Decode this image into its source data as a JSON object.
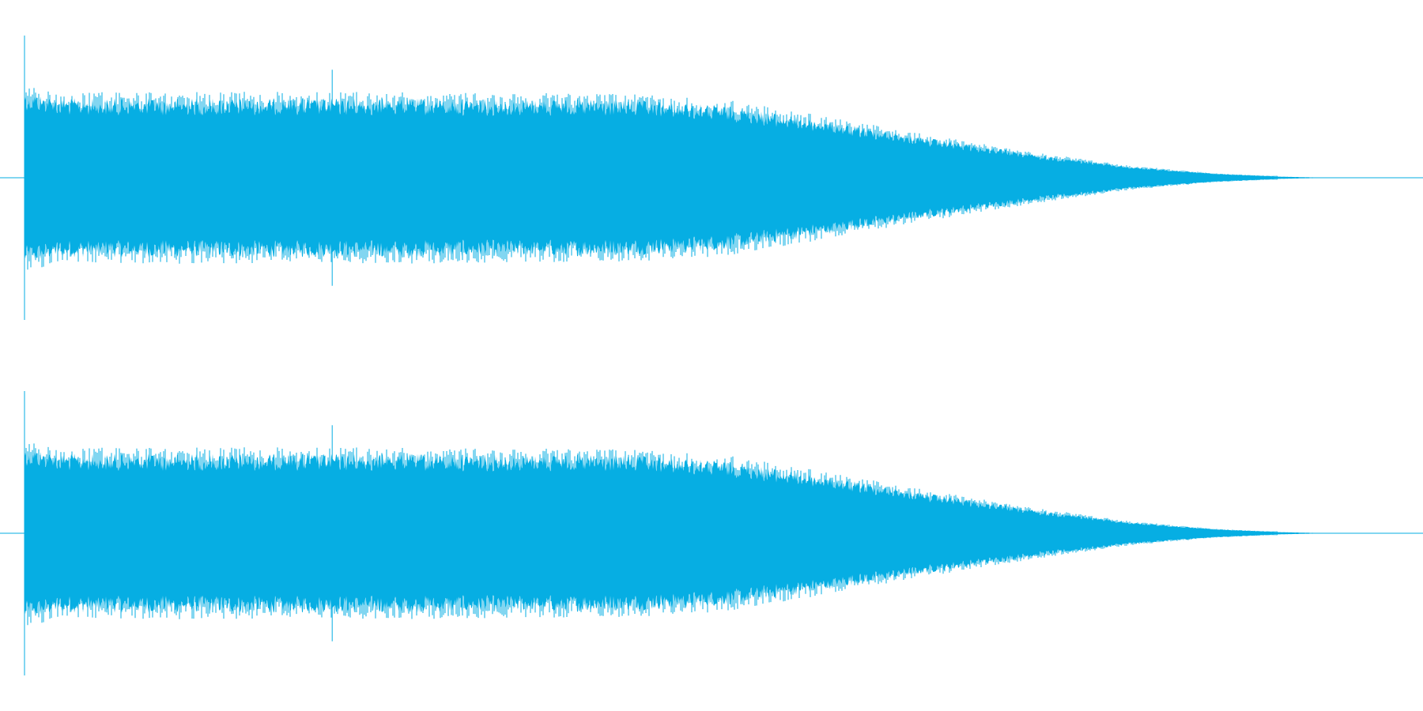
{
  "waveform": {
    "color": "#06aee3",
    "background": "#ffffff",
    "channel_count": 2,
    "duration_fraction_of_view": 0.935,
    "envelope_levels": [
      {
        "t": 0.0,
        "level": 0.61
      },
      {
        "t": 0.024,
        "level": 0.56
      },
      {
        "t": 0.25,
        "level": 0.56
      },
      {
        "t": 0.43,
        "level": 0.55
      },
      {
        "t": 0.5,
        "level": 0.51
      },
      {
        "t": 0.56,
        "level": 0.42
      },
      {
        "t": 0.64,
        "level": 0.29
      },
      {
        "t": 0.72,
        "level": 0.17
      },
      {
        "t": 0.79,
        "level": 0.08
      },
      {
        "t": 0.85,
        "level": 0.03
      },
      {
        "t": 0.9,
        "level": 0.008
      },
      {
        "t": 0.935,
        "level": 0.0
      }
    ],
    "peak_events": [
      {
        "t": 0.0,
        "level": 1.0
      },
      {
        "t": 0.22,
        "level": 0.76
      }
    ]
  }
}
